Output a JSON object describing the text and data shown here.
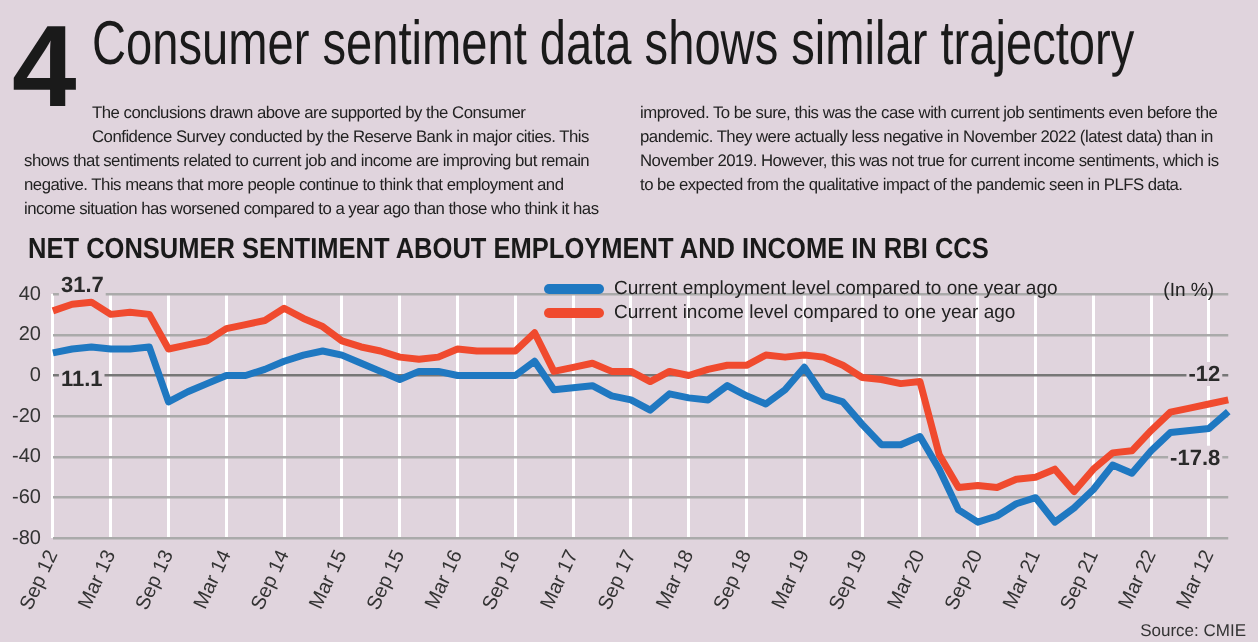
{
  "chart_data": {
    "type": "line",
    "title": "Consumer sentiment data shows similar trajectory",
    "subtitle": "NET CONSUMER SENTIMENT ABOUT EMPLOYMENT AND INCOME IN RBI CCS",
    "ylabel": "(In %)",
    "annotations": [
      "4",
      "The conclusions drawn above are supported by the Consumer Confidence Survey conducted by the Reserve Bank in major cities. This shows that sentiments related to current job and income are improving but remain negative. This means that more people continue to think that employment and income situation has worsened compared to a year ago than those who think it has improved. To be sure, this was the case with current job sentiments even before the pandemic. They were actually less negative in November 2022 (latest data) than in November 2019. However, this was not true for current income sentiments, which is to be expected from the qualitative impact of the pandemic seen in PLFS data.",
      "Source: CMIE"
    ],
    "categories": [
      "Sep 12",
      null,
      null,
      "Mar 13",
      null,
      null,
      "Sep 13",
      null,
      null,
      "Mar 14",
      null,
      null,
      "Sep 14",
      null,
      null,
      "Mar 15",
      null,
      null,
      "Sep 15",
      null,
      null,
      "Mar 16",
      null,
      null,
      "Sep 16",
      null,
      null,
      "Mar 17",
      null,
      null,
      "Sep 17",
      null,
      null,
      "Mar 18",
      null,
      null,
      "Sep 18",
      null,
      null,
      "Mar 19",
      null,
      null,
      "Sep 19",
      null,
      null,
      "Mar 20",
      null,
      null,
      "Sep 20",
      null,
      null,
      "Mar 21",
      null,
      null,
      "Sep 21",
      null,
      null,
      "Mar 22",
      null,
      null,
      "Mar 12",
      null
    ],
    "series": [
      {
        "name": "Current employment level compared to one year ago",
        "color": "#1f78c1",
        "values": [
          11.1,
          13,
          14,
          13,
          13,
          14,
          -13,
          -8,
          -4,
          0,
          0,
          3,
          7,
          10,
          12,
          10,
          6,
          2,
          -2,
          2,
          2,
          0,
          0,
          0,
          0,
          7,
          -7,
          -6,
          -5,
          -10,
          -12,
          -17,
          -9,
          -11,
          -12,
          -5,
          -10,
          -14,
          -7,
          4,
          -10,
          -13,
          -24,
          -34,
          -34,
          -30,
          -46,
          -66,
          -72,
          -69,
          -63,
          -60,
          -72,
          -65,
          -56,
          -44,
          -48,
          -37,
          -28,
          -27,
          -26,
          -17.8
        ],
        "value_labels": [
          "11.1",
          null,
          null,
          null,
          null,
          null,
          null,
          null,
          null,
          null,
          null,
          null,
          null,
          null,
          null,
          null,
          null,
          null,
          null,
          null,
          null,
          null,
          null,
          null,
          null,
          null,
          null,
          null,
          null,
          null,
          null,
          null,
          null,
          null,
          null,
          null,
          null,
          null,
          null,
          null,
          null,
          null,
          null,
          null,
          null,
          null,
          null,
          null,
          null,
          null,
          null,
          null,
          null,
          null,
          null,
          null,
          null,
          null,
          null,
          null,
          null,
          "-17.8"
        ]
      },
      {
        "name": "Current income level compared to one year ago",
        "color": "#f04a2e",
        "values": [
          31.7,
          35,
          36,
          30,
          31,
          30,
          13,
          15,
          17,
          23,
          25,
          27,
          33,
          28,
          24,
          17,
          14,
          12,
          9,
          8,
          9,
          13,
          12,
          12,
          12,
          21,
          2,
          4,
          6,
          2,
          2,
          -3,
          2,
          0,
          3,
          5,
          5,
          10,
          9,
          10,
          9,
          5,
          -1,
          -2,
          -4,
          -3,
          -39,
          -55,
          -54,
          -55,
          -51,
          -50,
          -46,
          -57,
          -46,
          -38,
          -37,
          -27,
          -18,
          -16,
          -14,
          -12
        ],
        "value_labels": [
          "31.7",
          null,
          null,
          null,
          null,
          null,
          null,
          null,
          null,
          null,
          null,
          null,
          null,
          null,
          null,
          null,
          null,
          null,
          null,
          null,
          null,
          null,
          null,
          null,
          null,
          null,
          null,
          null,
          null,
          null,
          null,
          null,
          null,
          null,
          null,
          null,
          null,
          null,
          null,
          null,
          null,
          null,
          null,
          null,
          null,
          null,
          null,
          null,
          null,
          null,
          null,
          null,
          null,
          null,
          null,
          null,
          null,
          null,
          null,
          null,
          null,
          "-12"
        ]
      }
    ],
    "ylim": [
      -80,
      40
    ],
    "yticks": [
      -80,
      -60,
      -40,
      -20,
      0,
      20,
      40
    ],
    "grid": true,
    "legend": "top right",
    "marker": "none",
    "line_style": "solid"
  }
}
